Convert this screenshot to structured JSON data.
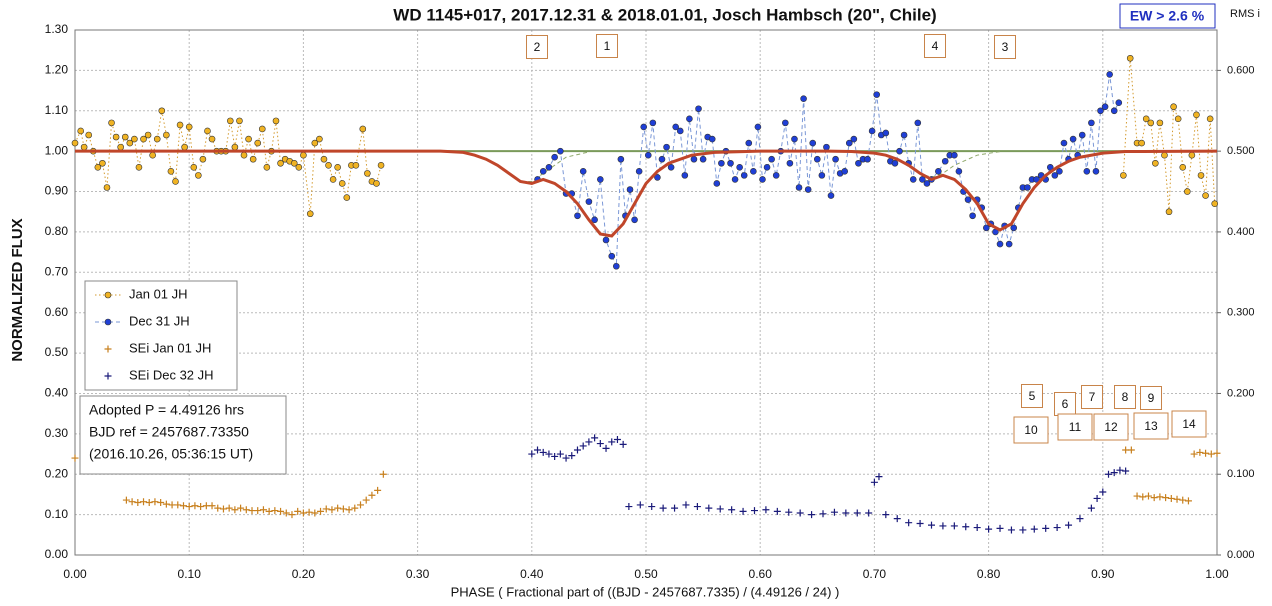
{
  "chart_data": {
    "type": "scatter",
    "title": "WD 1145+017, 2017.12.31 & 2018.01.01, Josch Hambsch (20\", Chile)",
    "xlabel": "PHASE  ( Fractional part of ((BJD - 2457687.7335)  / (4.49126  / 24) )",
    "ylabel": "NORMALIZED  FLUX",
    "y2label": "RMS i",
    "ew_label": "EW >  2.6 %",
    "info": [
      "Adopted P = 4.49126 hrs",
      "BJD ref = 2457687.73350",
      "(2016.10.26, 05:36:15 UT)"
    ],
    "annotations": [
      "2",
      "1",
      "4",
      "3",
      "5",
      "6",
      "7",
      "8",
      "9",
      "10",
      "11",
      "12",
      "13",
      "14"
    ],
    "xlim": [
      0,
      1
    ],
    "ylim": [
      0,
      1.3
    ],
    "y2lim": [
      0,
      0.65
    ],
    "grid": true,
    "legend": "left",
    "xticks": [
      {
        "value": 0,
        "label": "0.00"
      },
      {
        "value": 0.1,
        "label": "0.10"
      },
      {
        "value": 0.2,
        "label": "0.20"
      },
      {
        "value": 0.3,
        "label": "0.30"
      },
      {
        "value": 0.4,
        "label": "0.40"
      },
      {
        "value": 0.5,
        "label": "0.50"
      },
      {
        "value": 0.6,
        "label": "0.60"
      },
      {
        "value": 0.7,
        "label": "0.70"
      },
      {
        "value": 0.8,
        "label": "0.80"
      },
      {
        "value": 0.9,
        "label": "0.90"
      },
      {
        "value": 1,
        "label": "1.00"
      }
    ],
    "yticks": [
      {
        "value": 0,
        "label": "0.00"
      },
      {
        "value": 0.1,
        "label": "0.10"
      },
      {
        "value": 0.2,
        "label": "0.20"
      },
      {
        "value": 0.3,
        "label": "0.30"
      },
      {
        "value": 0.4,
        "label": "0.40"
      },
      {
        "value": 0.5,
        "label": "0.50"
      },
      {
        "value": 0.6,
        "label": "0.60"
      },
      {
        "value": 0.7,
        "label": "0.70"
      },
      {
        "value": 0.8,
        "label": "0.80"
      },
      {
        "value": 0.9,
        "label": "0.90"
      },
      {
        "value": 1,
        "label": "1.00"
      },
      {
        "value": 1.1,
        "label": "1.10"
      },
      {
        "value": 1.2,
        "label": "1.20"
      },
      {
        "value": 1.3,
        "label": "1.30"
      }
    ],
    "y2ticks": [
      {
        "value": 0,
        "label": "0.000"
      },
      {
        "value": 0.1,
        "label": "0.100"
      },
      {
        "value": 0.2,
        "label": "0.200"
      },
      {
        "value": 0.3,
        "label": "0.300"
      },
      {
        "value": 0.4,
        "label": "0.400"
      },
      {
        "value": 0.5,
        "label": "0.500"
      },
      {
        "value": 0.6,
        "label": "0.600"
      }
    ],
    "series": [
      {
        "color": "#7a9a5a",
        "line": "solid",
        "marker": null,
        "x": [
          0,
          1
        ],
        "values": [
          1,
          1
        ]
      },
      {
        "color": "#8fa86a",
        "line": "dashed",
        "marker": null,
        "x": [
          0.33,
          0.35,
          0.37,
          0.38,
          0.39,
          0.4,
          0.41,
          0.43,
          0.45,
          0.46,
          0.7,
          0.72,
          0.73,
          0.74,
          0.75,
          0.76,
          0.77,
          0.79,
          0.81
        ],
        "values": [
          1,
          0.99,
          0.965,
          0.945,
          0.925,
          0.925,
          0.945,
          0.985,
          0.998,
          null,
          0.998,
          0.98,
          0.965,
          0.945,
          0.935,
          0.945,
          0.965,
          0.99,
          0.999
        ]
      },
      {
        "name": "Jan 01 JH",
        "color": "#f0b323",
        "line": "dotted",
        "marker": "circle",
        "x": [
          0,
          0.005,
          0.008,
          0.012,
          0.016,
          0.02,
          0.024,
          0.028,
          0.032,
          0.036,
          0.04,
          0.044,
          0.048,
          0.052,
          0.056,
          0.06,
          0.064,
          0.068,
          0.072,
          0.076,
          0.08,
          0.084,
          0.088,
          0.092,
          0.096,
          0.1,
          0.104,
          0.108,
          0.112,
          0.116,
          0.12,
          0.124,
          0.128,
          0.132,
          0.136,
          0.14,
          0.144,
          0.148,
          0.152,
          0.156,
          0.16,
          0.164,
          0.168,
          0.172,
          0.176,
          0.18,
          0.184,
          0.188,
          0.192,
          0.196,
          0.2,
          0.206,
          0.21,
          0.214,
          0.218,
          0.222,
          0.226,
          0.23,
          0.234,
          0.238,
          0.242,
          0.246,
          0.252,
          0.256,
          0.26,
          0.264,
          0.268,
          null,
          0.918,
          0.924,
          0.93,
          0.934,
          0.938,
          0.942,
          0.946,
          0.95,
          0.954,
          0.958,
          0.962,
          0.966,
          0.97,
          0.974,
          0.978,
          0.982,
          0.986,
          0.99,
          0.994,
          0.998
        ],
        "values": [
          1.02,
          1.05,
          1.01,
          1.04,
          1.0,
          0.96,
          0.97,
          0.91,
          1.07,
          1.035,
          1.01,
          1.035,
          1.02,
          1.03,
          0.96,
          1.03,
          1.04,
          0.99,
          1.03,
          1.1,
          1.04,
          0.95,
          0.925,
          1.065,
          1.01,
          1.06,
          0.96,
          0.94,
          0.98,
          1.05,
          1.03,
          1.0,
          1.0,
          1.0,
          1.075,
          1.01,
          1.075,
          0.99,
          1.03,
          0.98,
          1.02,
          1.055,
          0.96,
          1.0,
          1.075,
          0.97,
          0.98,
          0.975,
          0.97,
          0.96,
          0.99,
          0.845,
          1.02,
          1.03,
          0.98,
          0.965,
          0.93,
          0.96,
          0.92,
          0.885,
          0.965,
          0.965,
          1.055,
          0.945,
          0.925,
          0.92,
          0.965,
          null,
          0.94,
          1.23,
          1.02,
          1.02,
          1.08,
          1.07,
          0.97,
          1.07,
          0.99,
          0.85,
          1.11,
          1.08,
          0.96,
          0.9,
          0.99,
          1.09,
          0.94,
          0.89,
          1.08,
          0.87
        ]
      },
      {
        "name": "Dec 31 JH",
        "color": "#1f3fd6",
        "line": "dashed",
        "marker": "circle",
        "x": [
          0.405,
          0.41,
          0.415,
          0.42,
          0.425,
          0.43,
          0.435,
          0.44,
          0.445,
          0.45,
          0.455,
          0.46,
          0.465,
          0.47,
          0.474,
          0.478,
          0.482,
          0.486,
          0.49,
          0.494,
          0.498,
          0.502,
          0.506,
          0.51,
          0.514,
          0.518,
          0.522,
          0.526,
          0.53,
          0.534,
          0.538,
          0.542,
          0.546,
          0.55,
          0.554,
          0.558,
          0.562,
          0.566,
          0.57,
          0.574,
          0.578,
          0.582,
          0.586,
          0.59,
          0.594,
          0.598,
          0.602,
          0.606,
          0.61,
          0.614,
          0.618,
          0.622,
          0.626,
          0.63,
          0.634,
          0.638,
          0.642,
          0.646,
          0.65,
          0.654,
          0.658,
          0.662,
          0.666,
          0.67,
          0.674,
          0.678,
          0.682,
          0.686,
          0.69,
          0.694,
          0.698,
          0.702,
          0.706,
          0.71,
          0.714,
          0.718,
          0.722,
          0.726,
          0.73,
          0.734,
          0.738,
          0.742,
          0.746,
          0.75,
          0.756,
          0.762,
          0.766,
          0.77,
          0.774,
          0.778,
          0.782,
          0.786,
          0.79,
          0.794,
          0.798,
          0.802,
          0.806,
          0.81,
          0.814,
          0.818,
          0.822,
          0.826,
          0.83,
          0.834,
          0.838,
          0.842,
          0.846,
          0.85,
          0.854,
          0.858,
          0.862,
          0.866,
          0.87,
          0.874,
          0.878,
          0.882,
          0.886,
          0.89,
          0.894,
          0.898,
          0.902,
          0.906,
          0.91,
          0.914
        ],
        "values": [
          0.93,
          0.95,
          0.96,
          0.985,
          1.0,
          0.895,
          0.895,
          0.84,
          0.95,
          0.875,
          0.83,
          0.93,
          0.78,
          0.74,
          0.715,
          0.98,
          0.84,
          0.905,
          0.83,
          0.95,
          1.06,
          0.99,
          1.07,
          0.935,
          0.98,
          1.01,
          0.96,
          1.06,
          1.05,
          0.94,
          1.08,
          0.98,
          1.105,
          0.98,
          1.035,
          1.03,
          0.92,
          0.97,
          1.0,
          0.97,
          0.93,
          0.96,
          0.94,
          1.02,
          0.95,
          1.06,
          0.93,
          0.96,
          0.98,
          0.94,
          1.0,
          1.07,
          0.97,
          1.03,
          0.91,
          1.13,
          0.905,
          1.02,
          0.98,
          0.94,
          1.01,
          0.89,
          0.98,
          0.945,
          0.95,
          1.02,
          1.03,
          0.97,
          0.98,
          0.98,
          1.05,
          1.14,
          1.04,
          1.045,
          0.975,
          0.97,
          1.0,
          1.04,
          0.97,
          0.93,
          1.07,
          0.93,
          0.92,
          0.93,
          0.95,
          0.975,
          0.99,
          0.99,
          0.95,
          0.9,
          0.88,
          0.84,
          0.88,
          0.86,
          0.81,
          0.82,
          0.8,
          0.77,
          0.815,
          0.77,
          0.81,
          0.86,
          0.91,
          0.91,
          0.93,
          0.93,
          0.94,
          0.93,
          0.96,
          0.94,
          0.95,
          1.02,
          0.98,
          1.03,
          0.99,
          1.04,
          0.95,
          1.07,
          0.95,
          1.1,
          1.11,
          1.19,
          1.1,
          1.12
        ]
      },
      {
        "name": "SEi Jan 01 JH",
        "color": "#c8801e",
        "line": null,
        "marker": "plus",
        "axis": "y2",
        "x": [
          0,
          0.045,
          0.05,
          0.055,
          0.06,
          0.065,
          0.07,
          0.075,
          0.08,
          0.085,
          0.09,
          0.095,
          0.1,
          0.105,
          0.11,
          0.115,
          0.12,
          0.125,
          0.13,
          0.135,
          0.14,
          0.145,
          0.15,
          0.155,
          0.16,
          0.165,
          0.17,
          0.175,
          0.18,
          0.185,
          0.19,
          0.195,
          0.2,
          0.205,
          0.21,
          0.215,
          0.22,
          0.225,
          0.23,
          0.235,
          0.24,
          0.245,
          0.25,
          0.255,
          0.26,
          0.265,
          0.27,
          0.92,
          0.925,
          0.93,
          0.935,
          0.94,
          0.945,
          0.95,
          0.955,
          0.96,
          0.965,
          0.97,
          0.975,
          0.98,
          0.985,
          0.99,
          0.995,
          1.0
        ],
        "values": [
          0.12,
          0.068,
          0.066,
          0.065,
          0.066,
          0.065,
          0.066,
          0.065,
          0.063,
          0.062,
          0.062,
          0.061,
          0.06,
          0.061,
          0.06,
          0.061,
          0.061,
          0.058,
          0.057,
          0.058,
          0.056,
          0.058,
          0.056,
          0.055,
          0.055,
          0.056,
          0.054,
          0.055,
          0.054,
          0.052,
          0.05,
          0.054,
          0.052,
          0.053,
          0.052,
          0.054,
          0.057,
          0.056,
          0.058,
          0.057,
          0.056,
          0.058,
          0.062,
          0.068,
          0.074,
          0.08,
          0.1,
          0.13,
          0.13,
          0.073,
          0.072,
          0.073,
          0.071,
          0.072,
          0.071,
          0.07,
          0.069,
          0.068,
          0.067,
          0.125,
          0.127,
          0.126,
          0.125,
          0.126
        ]
      },
      {
        "name": "SEi Dec 32 JH",
        "color": "#1a1a7a",
        "line": null,
        "marker": "plus",
        "axis": "y2",
        "x": [
          0.4,
          0.405,
          0.41,
          0.415,
          0.42,
          0.425,
          0.43,
          0.435,
          0.44,
          0.445,
          0.45,
          0.455,
          0.46,
          0.465,
          0.47,
          0.475,
          0.48,
          0.485,
          0.495,
          0.505,
          0.515,
          0.525,
          0.535,
          0.545,
          0.555,
          0.565,
          0.575,
          0.585,
          0.595,
          0.605,
          0.615,
          0.625,
          0.635,
          0.645,
          0.655,
          0.665,
          0.675,
          0.685,
          0.695,
          0.7,
          0.704,
          0.71,
          0.72,
          0.73,
          0.74,
          0.75,
          0.76,
          0.77,
          0.78,
          0.79,
          0.8,
          0.81,
          0.82,
          0.83,
          0.84,
          0.85,
          0.86,
          0.87,
          0.88,
          0.89,
          0.895,
          0.9,
          0.905,
          0.91,
          0.915,
          0.92
        ],
        "values": [
          0.125,
          0.13,
          0.127,
          0.125,
          0.122,
          0.125,
          0.12,
          0.123,
          0.13,
          0.135,
          0.14,
          0.145,
          0.138,
          0.132,
          0.14,
          0.143,
          0.137,
          0.06,
          0.062,
          0.06,
          0.058,
          0.058,
          0.062,
          0.06,
          0.058,
          0.057,
          0.056,
          0.054,
          0.055,
          0.056,
          0.054,
          0.053,
          0.052,
          0.05,
          0.051,
          0.053,
          0.052,
          0.052,
          0.052,
          0.09,
          0.097,
          0.05,
          0.045,
          0.04,
          0.039,
          0.037,
          0.036,
          0.036,
          0.035,
          0.034,
          0.032,
          0.033,
          0.031,
          0.031,
          0.032,
          0.033,
          0.034,
          0.037,
          0.045,
          0.058,
          0.07,
          0.078,
          0.1,
          0.102,
          0.105,
          0.104
        ]
      },
      {
        "color": "#c0462a",
        "line": "thick",
        "marker": null,
        "x": [
          0,
          0.32,
          0.34,
          0.35,
          0.36,
          0.37,
          0.38,
          0.39,
          0.4,
          0.41,
          0.42,
          0.43,
          0.44,
          0.45,
          0.46,
          0.47,
          0.48,
          0.49,
          0.5,
          0.51,
          0.52,
          0.54,
          0.56,
          0.6,
          0.66,
          0.68,
          0.7,
          0.71,
          0.72,
          0.73,
          0.74,
          0.75,
          0.76,
          0.77,
          0.78,
          0.79,
          0.8,
          0.81,
          0.82,
          0.83,
          0.84,
          0.85,
          0.86,
          0.87,
          0.88,
          0.9,
          0.92,
          1.0
        ],
        "values": [
          1,
          1,
          0.997,
          0.99,
          0.98,
          0.965,
          0.945,
          0.925,
          0.92,
          0.93,
          0.92,
          0.9,
          0.87,
          0.83,
          0.795,
          0.79,
          0.82,
          0.87,
          0.92,
          0.95,
          0.97,
          0.99,
          0.997,
          1,
          1,
          0.999,
          0.995,
          0.99,
          0.98,
          0.965,
          0.945,
          0.93,
          0.94,
          0.93,
          0.905,
          0.87,
          0.82,
          0.805,
          0.82,
          0.87,
          0.91,
          0.94,
          0.96,
          0.975,
          0.985,
          0.995,
          0.999,
          1
        ]
      }
    ]
  }
}
